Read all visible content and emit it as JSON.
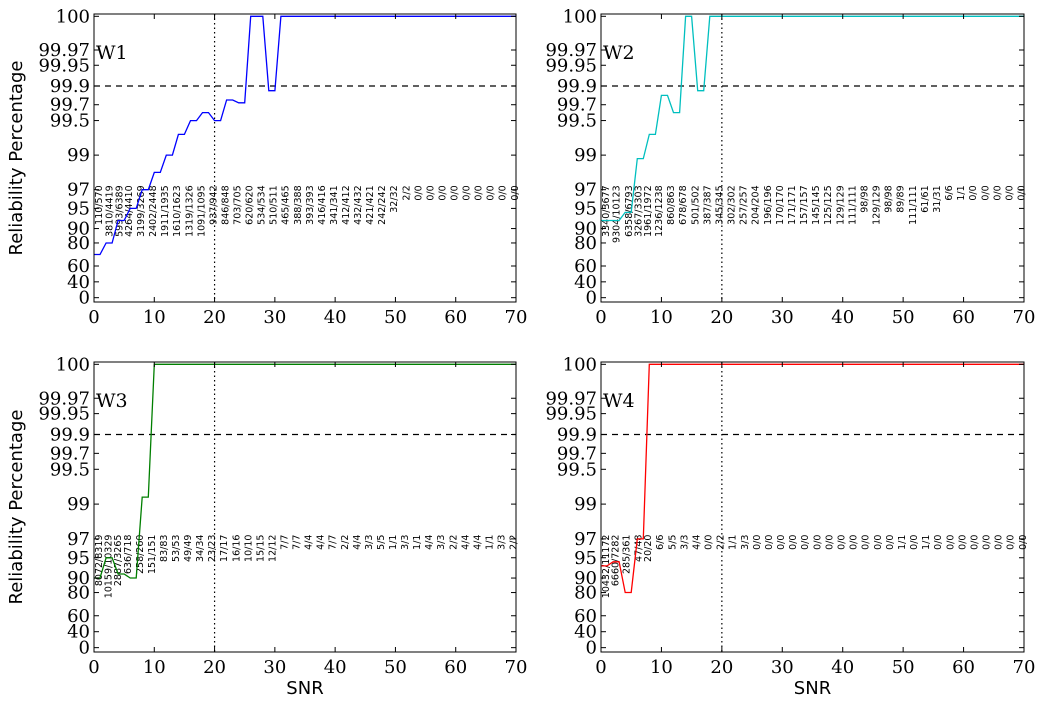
{
  "chart_data": [
    {
      "type": "line",
      "panel_label": "W1",
      "color": "#0000ff",
      "ylabel": "Reliability Percentage",
      "xlabel": "",
      "xlim": [
        0,
        70
      ],
      "xticks": [
        "0",
        "10",
        "20",
        "30",
        "40",
        "50",
        "60",
        "70"
      ],
      "yticks": [
        "0",
        "40",
        "60",
        "80",
        "90",
        "95",
        "97",
        "99",
        "99.5",
        "99.7",
        "99.9",
        "99.95",
        "99.97",
        "100"
      ],
      "reference_line_y": 99.9,
      "reference_line_x": 20,
      "x": [
        0,
        1,
        2,
        3,
        4,
        5,
        6,
        7,
        8,
        9,
        10,
        11,
        12,
        13,
        14,
        15,
        16,
        17,
        18,
        19,
        20,
        21,
        22,
        23,
        24,
        25,
        26,
        27,
        28,
        29,
        30,
        31,
        32,
        33,
        34,
        35,
        36,
        37,
        38,
        39,
        40,
        41,
        42,
        43,
        44,
        45,
        46,
        47,
        48,
        49,
        50,
        51,
        52,
        53,
        54,
        55,
        56,
        57,
        58,
        59,
        60,
        61,
        62,
        63,
        64,
        65,
        66,
        67,
        68,
        69,
        70
      ],
      "values": [
        70,
        70,
        80,
        80,
        92,
        92,
        95,
        95,
        97,
        97,
        98,
        98,
        99,
        99,
        99.3,
        99.3,
        99.5,
        99.5,
        99.6,
        99.6,
        99.5,
        99.5,
        99.75,
        99.75,
        99.72,
        99.72,
        100,
        100,
        100,
        99.85,
        99.85,
        100,
        100,
        100,
        100,
        100,
        100,
        100,
        100,
        100,
        100,
        100,
        100,
        100,
        100,
        100,
        100,
        100,
        100,
        100,
        100,
        100,
        100,
        100,
        100,
        100,
        100,
        100,
        100,
        100,
        100,
        100,
        100,
        100,
        100,
        100,
        100,
        100,
        100,
        100,
        100
      ],
      "count_labels": [
        {
          "x": 0.8,
          "text": "110/570"
        },
        {
          "x": 2.6,
          "text": "3810/4419"
        },
        {
          "x": 4.2,
          "text": "5993/6389"
        },
        {
          "x": 5.8,
          "text": "4264/4410"
        },
        {
          "x": 7.8,
          "text": "3199/3269"
        },
        {
          "x": 9.8,
          "text": "2402/2448"
        },
        {
          "x": 11.8,
          "text": "1911/1935"
        },
        {
          "x": 13.8,
          "text": "1610/1623"
        },
        {
          "x": 15.8,
          "text": "1319/1326"
        },
        {
          "x": 17.8,
          "text": "1091/1095"
        },
        {
          "x": 19.8,
          "text": "937/942"
        },
        {
          "x": 21.8,
          "text": "846/848"
        },
        {
          "x": 23.8,
          "text": "703/705"
        },
        {
          "x": 25.8,
          "text": "620/620"
        },
        {
          "x": 27.8,
          "text": "534/534"
        },
        {
          "x": 29.8,
          "text": "510/511"
        },
        {
          "x": 31.8,
          "text": "465/465"
        },
        {
          "x": 33.8,
          "text": "388/388"
        },
        {
          "x": 35.8,
          "text": "393/393"
        },
        {
          "x": 37.8,
          "text": "416/416"
        },
        {
          "x": 39.8,
          "text": "341/341"
        },
        {
          "x": 41.8,
          "text": "412/412"
        },
        {
          "x": 43.8,
          "text": "432/432"
        },
        {
          "x": 45.8,
          "text": "421/421"
        },
        {
          "x": 47.8,
          "text": "242/242"
        },
        {
          "x": 49.8,
          "text": "32/32"
        },
        {
          "x": 51.8,
          "text": "2/2"
        },
        {
          "x": 53.8,
          "text": "0/0"
        },
        {
          "x": 55.8,
          "text": "0/0"
        },
        {
          "x": 57.8,
          "text": "0/0"
        },
        {
          "x": 59.8,
          "text": "0/0"
        },
        {
          "x": 61.8,
          "text": "0/0"
        },
        {
          "x": 63.8,
          "text": "0/0"
        },
        {
          "x": 65.8,
          "text": "0/0"
        },
        {
          "x": 67.8,
          "text": "0/0"
        },
        {
          "x": 69.8,
          "text": "0/0"
        }
      ]
    },
    {
      "type": "line",
      "panel_label": "W2",
      "color": "#00bfbf",
      "ylabel": "",
      "xlabel": "",
      "xlim": [
        0,
        70
      ],
      "xticks": [
        "0",
        "10",
        "20",
        "30",
        "40",
        "50",
        "60",
        "70"
      ],
      "yticks": [
        "0",
        "40",
        "60",
        "80",
        "90",
        "95",
        "97",
        "99",
        "99.5",
        "99.7",
        "99.9",
        "99.95",
        "99.97",
        "100"
      ],
      "reference_line_y": 99.9,
      "reference_line_x": 20,
      "x": [
        0,
        1,
        2,
        3,
        4,
        5,
        6,
        7,
        8,
        9,
        10,
        11,
        12,
        13,
        14,
        15,
        16,
        17,
        18,
        19,
        20,
        21,
        22,
        23,
        24,
        25,
        26,
        27,
        28,
        29,
        30,
        31,
        32,
        33,
        34,
        35,
        36,
        37,
        38,
        39,
        40,
        41,
        42,
        43,
        44,
        45,
        46,
        47,
        48,
        49,
        50,
        51,
        52,
        53,
        54,
        55,
        56,
        57,
        58,
        59,
        60,
        61,
        62,
        63,
        64,
        65,
        66,
        67,
        68,
        69,
        70
      ],
      "values": [
        92,
        92,
        92,
        92,
        94,
        94,
        98.8,
        98.8,
        99.3,
        99.3,
        99.8,
        99.8,
        99.6,
        99.6,
        100,
        100,
        99.85,
        99.85,
        100,
        100,
        100,
        100,
        100,
        100,
        100,
        100,
        100,
        100,
        100,
        100,
        100,
        100,
        100,
        100,
        100,
        100,
        100,
        100,
        100,
        100,
        100,
        100,
        100,
        100,
        100,
        100,
        100,
        100,
        100,
        100,
        100,
        100,
        100,
        100,
        100,
        100,
        100,
        100,
        100,
        100,
        100,
        100,
        100,
        100,
        100,
        100,
        100,
        100,
        100,
        100,
        100
      ],
      "count_labels": [
        {
          "x": 0.8,
          "text": "3340/3677"
        },
        {
          "x": 2.6,
          "text": "9304/10123"
        },
        {
          "x": 4.6,
          "text": "6358/6793"
        },
        {
          "x": 6.2,
          "text": "3267/3303"
        },
        {
          "x": 7.8,
          "text": "1961/1972"
        },
        {
          "x": 9.6,
          "text": "1236/1238"
        },
        {
          "x": 11.6,
          "text": "860/863"
        },
        {
          "x": 13.6,
          "text": "678/678"
        },
        {
          "x": 15.6,
          "text": "501/502"
        },
        {
          "x": 17.6,
          "text": "387/387"
        },
        {
          "x": 19.6,
          "text": "345/345"
        },
        {
          "x": 21.6,
          "text": "302/302"
        },
        {
          "x": 23.6,
          "text": "257/257"
        },
        {
          "x": 25.6,
          "text": "204/204"
        },
        {
          "x": 27.6,
          "text": "196/196"
        },
        {
          "x": 29.6,
          "text": "170/170"
        },
        {
          "x": 31.6,
          "text": "171/171"
        },
        {
          "x": 33.6,
          "text": "157/157"
        },
        {
          "x": 35.6,
          "text": "145/145"
        },
        {
          "x": 37.6,
          "text": "125/125"
        },
        {
          "x": 39.6,
          "text": "129/129"
        },
        {
          "x": 41.6,
          "text": "111/111"
        },
        {
          "x": 43.6,
          "text": "98/98"
        },
        {
          "x": 45.6,
          "text": "129/129"
        },
        {
          "x": 47.6,
          "text": "98/98"
        },
        {
          "x": 49.6,
          "text": "89/89"
        },
        {
          "x": 51.6,
          "text": "111/111"
        },
        {
          "x": 53.6,
          "text": "61/61"
        },
        {
          "x": 55.6,
          "text": "31/31"
        },
        {
          "x": 57.6,
          "text": "6/6"
        },
        {
          "x": 59.6,
          "text": "1/1"
        },
        {
          "x": 61.6,
          "text": "0/0"
        },
        {
          "x": 63.6,
          "text": "0/0"
        },
        {
          "x": 65.6,
          "text": "0/0"
        },
        {
          "x": 67.6,
          "text": "0/0"
        },
        {
          "x": 69.6,
          "text": "0/0"
        }
      ]
    },
    {
      "type": "line",
      "panel_label": "W3",
      "color": "#007f00",
      "ylabel": "Reliability Percentage",
      "xlabel": "SNR",
      "xlim": [
        0,
        70
      ],
      "xticks": [
        "0",
        "10",
        "20",
        "30",
        "40",
        "50",
        "60",
        "70"
      ],
      "yticks": [
        "0",
        "40",
        "60",
        "80",
        "90",
        "95",
        "97",
        "99",
        "99.5",
        "99.7",
        "99.9",
        "99.95",
        "99.97",
        "100"
      ],
      "reference_line_y": 99.9,
      "reference_line_x": 20,
      "x": [
        0,
        1,
        2,
        3,
        4,
        5,
        6,
        7,
        8,
        9,
        10,
        11,
        12,
        13,
        14,
        15,
        16,
        17,
        18,
        19,
        20,
        21,
        22,
        23,
        24,
        25,
        26,
        27,
        28,
        29,
        30,
        31,
        32,
        33,
        34,
        35,
        36,
        37,
        38,
        39,
        40,
        41,
        42,
        43,
        44,
        45,
        46,
        47,
        48,
        49,
        50,
        51,
        52,
        53,
        54,
        55,
        56,
        57,
        58,
        59,
        60,
        61,
        62,
        63,
        64,
        65,
        66,
        67,
        68,
        69,
        70
      ],
      "values": [
        90,
        90,
        95,
        95,
        91,
        91,
        90,
        90,
        99.1,
        99.1,
        100,
        100,
        100,
        100,
        100,
        100,
        100,
        100,
        100,
        100,
        100,
        100,
        100,
        100,
        100,
        100,
        100,
        100,
        100,
        100,
        100,
        100,
        100,
        100,
        100,
        100,
        100,
        100,
        100,
        100,
        100,
        100,
        100,
        100,
        100,
        100,
        100,
        100,
        100,
        100,
        100,
        100,
        100,
        100,
        100,
        100,
        100,
        100,
        100,
        100,
        100,
        100,
        100,
        100,
        100,
        100,
        100,
        100,
        100,
        100,
        100
      ],
      "count_labels": [
        {
          "x": 0.8,
          "text": "8072/8319"
        },
        {
          "x": 2.4,
          "text": "10159/10329"
        },
        {
          "x": 4.0,
          "text": "2887/3265"
        },
        {
          "x": 5.6,
          "text": "636/718"
        },
        {
          "x": 7.6,
          "text": "258/260"
        },
        {
          "x": 9.6,
          "text": "151/151"
        },
        {
          "x": 11.6,
          "text": "83/83"
        },
        {
          "x": 13.6,
          "text": "53/53"
        },
        {
          "x": 15.6,
          "text": "49/49"
        },
        {
          "x": 17.6,
          "text": "34/34"
        },
        {
          "x": 19.6,
          "text": "23/23"
        },
        {
          "x": 21.6,
          "text": "17/17"
        },
        {
          "x": 23.6,
          "text": "16/16"
        },
        {
          "x": 25.6,
          "text": "10/10"
        },
        {
          "x": 27.6,
          "text": "15/15"
        },
        {
          "x": 29.6,
          "text": "12/12"
        },
        {
          "x": 31.6,
          "text": "7/7"
        },
        {
          "x": 33.6,
          "text": "7/7"
        },
        {
          "x": 35.6,
          "text": "4/4"
        },
        {
          "x": 37.6,
          "text": "4/4"
        },
        {
          "x": 39.6,
          "text": "7/7"
        },
        {
          "x": 41.6,
          "text": "2/2"
        },
        {
          "x": 43.6,
          "text": "4/4"
        },
        {
          "x": 45.6,
          "text": "3/3"
        },
        {
          "x": 47.6,
          "text": "5/5"
        },
        {
          "x": 49.6,
          "text": "1/1"
        },
        {
          "x": 51.6,
          "text": "3/3"
        },
        {
          "x": 53.6,
          "text": "1/1"
        },
        {
          "x": 55.6,
          "text": "4/4"
        },
        {
          "x": 57.6,
          "text": "3/3"
        },
        {
          "x": 59.6,
          "text": "2/2"
        },
        {
          "x": 61.6,
          "text": "4/4"
        },
        {
          "x": 63.6,
          "text": "4/4"
        },
        {
          "x": 65.6,
          "text": "1/1"
        },
        {
          "x": 67.6,
          "text": "3/3"
        },
        {
          "x": 69.6,
          "text": "2/2"
        }
      ]
    },
    {
      "type": "line",
      "panel_label": "W4",
      "color": "#ff0000",
      "ylabel": "",
      "xlabel": "SNR",
      "xlim": [
        0,
        70
      ],
      "xticks": [
        "0",
        "10",
        "20",
        "30",
        "40",
        "50",
        "60",
        "70"
      ],
      "yticks": [
        "0",
        "40",
        "60",
        "80",
        "90",
        "95",
        "97",
        "99",
        "99.5",
        "99.7",
        "99.9",
        "99.95",
        "99.97",
        "100"
      ],
      "reference_line_y": 99.9,
      "reference_line_x": 20,
      "x": [
        0,
        1,
        2,
        3,
        4,
        5,
        6,
        7,
        8,
        9,
        10,
        11,
        12,
        13,
        14,
        15,
        16,
        17,
        18,
        19,
        20,
        21,
        22,
        23,
        24,
        25,
        26,
        27,
        28,
        29,
        30,
        31,
        32,
        33,
        34,
        35,
        36,
        37,
        38,
        39,
        40,
        41,
        42,
        43,
        44,
        45,
        46,
        47,
        48,
        49,
        50,
        51,
        52,
        53,
        54,
        55,
        56,
        57,
        58,
        59,
        60,
        61,
        62,
        63,
        64,
        65,
        66,
        67,
        68,
        69,
        70
      ],
      "values": [
        93,
        93,
        94,
        94,
        80,
        80,
        97,
        97,
        100,
        100,
        100,
        100,
        100,
        100,
        100,
        100,
        100,
        100,
        100,
        100,
        100,
        100,
        100,
        100,
        100,
        100,
        100,
        100,
        100,
        100,
        100,
        100,
        100,
        100,
        100,
        100,
        100,
        100,
        100,
        100,
        100,
        100,
        100,
        100,
        100,
        100,
        100,
        100,
        100,
        100,
        100,
        100,
        100,
        100,
        100,
        100,
        100,
        100,
        100,
        100,
        100,
        100,
        100,
        100,
        100,
        100,
        100,
        100,
        100,
        100,
        100
      ],
      "count_labels": [
        {
          "x": 0.8,
          "text": "10432/11172"
        },
        {
          "x": 2.4,
          "text": "6660/7282"
        },
        {
          "x": 4.2,
          "text": "285/361"
        },
        {
          "x": 6.2,
          "text": "47/48"
        },
        {
          "x": 7.8,
          "text": "20/20"
        },
        {
          "x": 9.8,
          "text": "6/6"
        },
        {
          "x": 11.8,
          "text": "5/5"
        },
        {
          "x": 13.8,
          "text": "3/3"
        },
        {
          "x": 15.8,
          "text": "4/4"
        },
        {
          "x": 17.8,
          "text": "0/0"
        },
        {
          "x": 19.8,
          "text": "2/2"
        },
        {
          "x": 21.8,
          "text": "1/1"
        },
        {
          "x": 23.8,
          "text": "3/3"
        },
        {
          "x": 25.8,
          "text": "0/0"
        },
        {
          "x": 27.8,
          "text": "0/0"
        },
        {
          "x": 29.8,
          "text": "0/0"
        },
        {
          "x": 31.8,
          "text": "0/0"
        },
        {
          "x": 33.8,
          "text": "0/0"
        },
        {
          "x": 35.8,
          "text": "0/0"
        },
        {
          "x": 37.8,
          "text": "0/0"
        },
        {
          "x": 39.8,
          "text": "0/0"
        },
        {
          "x": 41.8,
          "text": "0/0"
        },
        {
          "x": 43.8,
          "text": "0/0"
        },
        {
          "x": 45.8,
          "text": "0/0"
        },
        {
          "x": 47.8,
          "text": "0/0"
        },
        {
          "x": 49.8,
          "text": "1/1"
        },
        {
          "x": 51.8,
          "text": "0/0"
        },
        {
          "x": 53.8,
          "text": "1/1"
        },
        {
          "x": 55.8,
          "text": "0/0"
        },
        {
          "x": 57.8,
          "text": "0/0"
        },
        {
          "x": 59.8,
          "text": "0/0"
        },
        {
          "x": 61.8,
          "text": "0/0"
        },
        {
          "x": 63.8,
          "text": "0/0"
        },
        {
          "x": 65.8,
          "text": "0/0"
        },
        {
          "x": 67.8,
          "text": "0/0"
        },
        {
          "x": 69.8,
          "text": "0/0"
        }
      ]
    }
  ]
}
